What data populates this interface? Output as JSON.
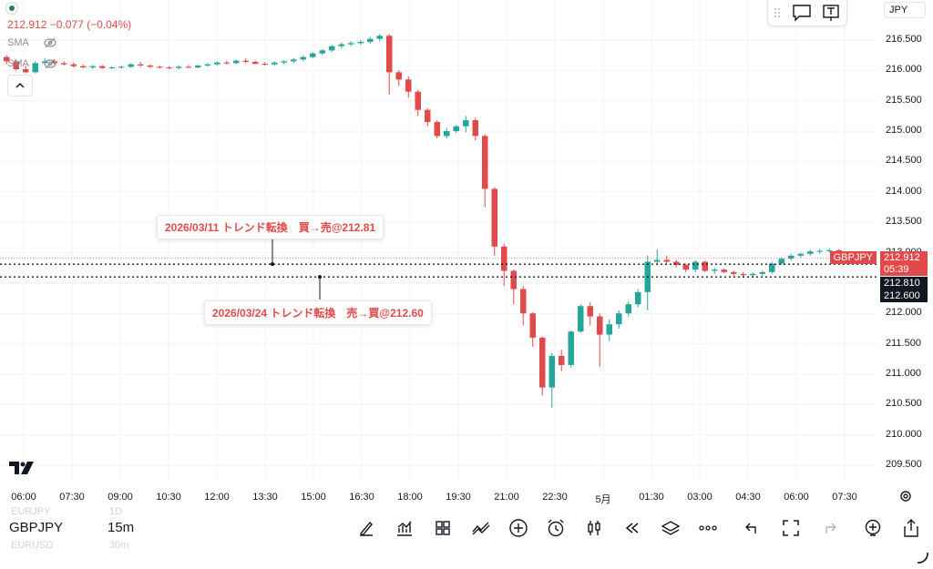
{
  "header": {
    "price_change": "212.912 −0.077 (−0.04%)",
    "sma1": "SMA",
    "sma2": "SMA",
    "currency": "JPY"
  },
  "price_axis": {
    "ticks": [
      "216.500",
      "216.000",
      "215.500",
      "215.000",
      "214.500",
      "214.000",
      "213.500",
      "213.000",
      "212.500",
      "212.000",
      "211.500",
      "211.000",
      "210.500",
      "210.000",
      "209.500"
    ],
    "tags": {
      "symbol": "GBPJPY",
      "last_price": "212.912",
      "countdown": "05:39",
      "line1": "212.810",
      "line2": "212.600"
    },
    "colors": {
      "last": "#e04a4a",
      "dark": "#131722"
    }
  },
  "time_axis": [
    "06:00",
    "07:30",
    "09:00",
    "10:30",
    "12:00",
    "13:30",
    "15:00",
    "16:30",
    "18:00",
    "19:30",
    "21:00",
    "22:30",
    "5月",
    "01:30",
    "03:00",
    "04:30",
    "06:00",
    "07:30"
  ],
  "annotations": [
    {
      "text": "2026/03/11  トレンド転換　買→売@212.81",
      "price": 212.81
    },
    {
      "text": "2026/03/24 トレンド転換　売→買@212.60",
      "price": 212.6
    }
  ],
  "bottom": {
    "symbol": "GBPJPY",
    "timeframe": "15m",
    "ghost_top_symbol": "EURJPY",
    "ghost_top_tf": "1D",
    "ghost_bottom_symbol": "EURUSD",
    "ghost_bottom_tf": "30m"
  },
  "toolbar_icons": [
    "pen-icon",
    "indicators-icon",
    "grid-icon",
    "compare-icon",
    "add-icon",
    "alarm-icon",
    "candles-icon",
    "replay-icon",
    "layers-icon",
    "more-icon",
    "undo-icon",
    "fullscreen-icon",
    "redo-icon",
    "add-alert-icon",
    "share-icon"
  ],
  "chart_data": {
    "type": "candlestick",
    "symbol": "GBPJPY",
    "timeframe": "15m",
    "y_range": [
      209.3,
      216.7
    ],
    "colors": {
      "up": "#26a69a",
      "down": "#e04a4a"
    },
    "hlines": [
      212.81,
      212.6
    ],
    "candles": [
      [
        216.22,
        216.25,
        216.1,
        216.15
      ],
      [
        216.15,
        216.18,
        216.0,
        216.02
      ],
      [
        216.02,
        216.08,
        215.95,
        215.97
      ],
      [
        215.97,
        216.15,
        215.95,
        216.12
      ],
      [
        216.12,
        216.2,
        216.1,
        216.15
      ],
      [
        216.15,
        216.18,
        216.1,
        216.12
      ],
      [
        216.12,
        216.15,
        216.08,
        216.1
      ],
      [
        216.1,
        216.13,
        216.05,
        216.07
      ],
      [
        216.07,
        216.1,
        216.03,
        216.05
      ],
      [
        216.05,
        216.09,
        216.02,
        216.07
      ],
      [
        216.07,
        216.09,
        216.02,
        216.04
      ],
      [
        216.04,
        216.07,
        216.02,
        216.05
      ],
      [
        216.05,
        216.08,
        216.03,
        216.06
      ],
      [
        216.06,
        216.12,
        216.04,
        216.1
      ],
      [
        216.1,
        216.14,
        216.06,
        216.08
      ],
      [
        216.08,
        216.1,
        216.04,
        216.06
      ],
      [
        216.06,
        216.08,
        216.03,
        216.05
      ],
      [
        216.05,
        216.07,
        216.02,
        216.04
      ],
      [
        216.04,
        216.08,
        216.02,
        216.06
      ],
      [
        216.06,
        216.09,
        216.04,
        216.05
      ],
      [
        216.05,
        216.09,
        216.03,
        216.08
      ],
      [
        216.08,
        216.12,
        216.06,
        216.1
      ],
      [
        216.1,
        216.15,
        216.08,
        216.13
      ],
      [
        216.13,
        216.16,
        216.1,
        216.12
      ],
      [
        216.12,
        216.18,
        216.1,
        216.16
      ],
      [
        216.16,
        216.2,
        216.12,
        216.14
      ],
      [
        216.14,
        216.16,
        216.1,
        216.11
      ],
      [
        216.11,
        216.14,
        216.08,
        216.1
      ],
      [
        216.1,
        216.15,
        216.08,
        216.13
      ],
      [
        216.13,
        216.17,
        216.1,
        216.15
      ],
      [
        216.15,
        216.2,
        216.12,
        216.18
      ],
      [
        216.18,
        216.25,
        216.15,
        216.22
      ],
      [
        216.22,
        216.3,
        216.2,
        216.28
      ],
      [
        216.28,
        216.35,
        216.25,
        216.33
      ],
      [
        216.33,
        216.42,
        216.3,
        216.4
      ],
      [
        216.4,
        216.46,
        216.36,
        216.43
      ],
      [
        216.43,
        216.48,
        216.4,
        216.45
      ],
      [
        216.45,
        216.5,
        216.42,
        216.47
      ],
      [
        216.47,
        216.55,
        216.44,
        216.52
      ],
      [
        216.52,
        216.6,
        216.48,
        216.57
      ],
      [
        216.57,
        216.6,
        215.6,
        215.97
      ],
      [
        215.97,
        216.0,
        215.75,
        215.85
      ],
      [
        215.85,
        215.9,
        215.55,
        215.65
      ],
      [
        215.65,
        215.68,
        215.25,
        215.35
      ],
      [
        215.35,
        215.38,
        215.08,
        215.15
      ],
      [
        215.15,
        215.18,
        214.88,
        214.92
      ],
      [
        214.92,
        215.05,
        214.88,
        215.0
      ],
      [
        215.0,
        215.1,
        214.97,
        215.08
      ],
      [
        215.08,
        215.25,
        214.98,
        215.18
      ],
      [
        215.18,
        215.22,
        214.85,
        214.92
      ],
      [
        214.92,
        214.95,
        213.75,
        214.05
      ],
      [
        214.05,
        214.08,
        212.95,
        213.1
      ],
      [
        213.1,
        213.15,
        212.45,
        212.7
      ],
      [
        212.7,
        212.72,
        212.15,
        212.4
      ],
      [
        212.4,
        212.45,
        211.8,
        212.0
      ],
      [
        212.0,
        212.02,
        211.45,
        211.6
      ],
      [
        211.6,
        211.62,
        210.65,
        210.78
      ],
      [
        210.78,
        211.35,
        210.45,
        211.3
      ],
      [
        211.3,
        211.4,
        211.05,
        211.15
      ],
      [
        211.15,
        211.72,
        211.1,
        211.7
      ],
      [
        211.7,
        212.15,
        211.68,
        212.12
      ],
      [
        212.12,
        212.18,
        211.8,
        211.95
      ],
      [
        211.95,
        212.0,
        211.12,
        211.65
      ],
      [
        211.65,
        211.9,
        211.55,
        211.82
      ],
      [
        211.82,
        212.05,
        211.75,
        212.0
      ],
      [
        212.0,
        212.2,
        211.95,
        212.15
      ],
      [
        212.15,
        212.4,
        212.1,
        212.35
      ],
      [
        212.35,
        212.95,
        212.05,
        212.85
      ],
      [
        212.85,
        213.05,
        212.8,
        212.88
      ],
      [
        212.88,
        212.95,
        212.82,
        212.85
      ],
      [
        212.85,
        212.88,
        212.75,
        212.8
      ],
      [
        212.8,
        212.82,
        212.68,
        212.72
      ],
      [
        212.72,
        212.88,
        212.68,
        212.85
      ],
      [
        212.85,
        212.87,
        212.68,
        212.7
      ],
      [
        212.7,
        212.75,
        212.65,
        212.72
      ],
      [
        212.72,
        212.74,
        212.66,
        212.68
      ],
      [
        212.68,
        212.7,
        212.62,
        212.65
      ],
      [
        212.65,
        212.68,
        212.6,
        212.63
      ],
      [
        212.63,
        212.67,
        212.6,
        212.65
      ],
      [
        212.65,
        212.7,
        212.62,
        212.68
      ],
      [
        212.68,
        212.85,
        212.65,
        212.82
      ],
      [
        212.82,
        212.92,
        212.8,
        212.9
      ],
      [
        212.9,
        212.98,
        212.87,
        212.95
      ],
      [
        212.95,
        213.0,
        212.92,
        212.98
      ],
      [
        212.98,
        213.05,
        212.95,
        213.02
      ],
      [
        213.02,
        213.06,
        212.98,
        213.03
      ],
      [
        213.03,
        213.07,
        213.0,
        213.04
      ],
      [
        213.04,
        213.06,
        212.98,
        213.0
      ],
      [
        213.0,
        213.02,
        212.95,
        212.97
      ],
      [
        212.97,
        212.98,
        212.9,
        212.912
      ]
    ]
  }
}
